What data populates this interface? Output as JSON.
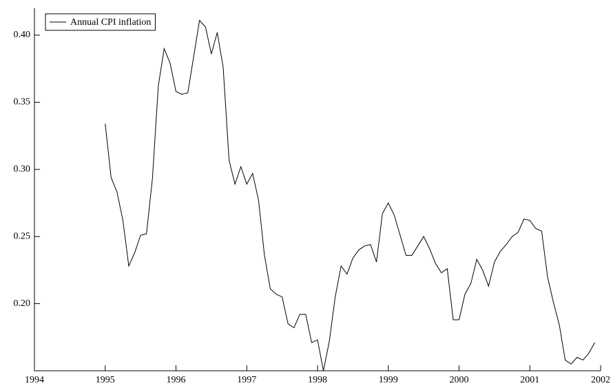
{
  "chart_data": {
    "type": "line",
    "xlim": [
      1994,
      2002
    ],
    "xticks": [
      1994,
      1995,
      1996,
      1997,
      1998,
      1999,
      2000,
      2001,
      2002
    ],
    "ylim": [
      0.15,
      0.42
    ],
    "yticks": [
      {
        "value": 0.2,
        "label": "0.20"
      },
      {
        "value": 0.25,
        "label": "0.25"
      },
      {
        "value": 0.3,
        "label": "0.30"
      },
      {
        "value": 0.35,
        "label": "0.35"
      },
      {
        "value": 0.4,
        "label": "0.40"
      }
    ],
    "legend": "upper left",
    "x": [
      1995.0,
      1995.083,
      1995.167,
      1995.25,
      1995.333,
      1995.417,
      1995.5,
      1995.583,
      1995.667,
      1995.75,
      1995.833,
      1995.917,
      1996.0,
      1996.083,
      1996.167,
      1996.25,
      1996.333,
      1996.417,
      1996.5,
      1996.583,
      1996.667,
      1996.75,
      1996.833,
      1996.917,
      1997.0,
      1997.083,
      1997.167,
      1997.25,
      1997.333,
      1997.417,
      1997.5,
      1997.583,
      1997.667,
      1997.75,
      1997.833,
      1997.917,
      1998.0,
      1998.083,
      1998.167,
      1998.25,
      1998.333,
      1998.417,
      1998.5,
      1998.583,
      1998.667,
      1998.75,
      1998.833,
      1998.917,
      1999.0,
      1999.083,
      1999.167,
      1999.25,
      1999.333,
      1999.417,
      1999.5,
      1999.583,
      1999.667,
      1999.75,
      1999.833,
      1999.917,
      2000.0,
      2000.083,
      2000.167,
      2000.25,
      2000.333,
      2000.417,
      2000.5,
      2000.583,
      2000.667,
      2000.75,
      2000.833,
      2000.917,
      2001.0,
      2001.083,
      2001.167,
      2001.25,
      2001.333,
      2001.417,
      2001.5,
      2001.583,
      2001.667,
      2001.75,
      2001.833,
      2001.917
    ],
    "series": [
      {
        "name": "Annual CPI inflation",
        "color": "#000000",
        "values": [
          0.334,
          0.294,
          0.283,
          0.262,
          0.228,
          0.238,
          0.251,
          0.252,
          0.293,
          0.362,
          0.39,
          0.379,
          0.358,
          0.356,
          0.357,
          0.384,
          0.411,
          0.406,
          0.386,
          0.402,
          0.376,
          0.307,
          0.289,
          0.302,
          0.289,
          0.297,
          0.277,
          0.236,
          0.211,
          0.207,
          0.205,
          0.185,
          0.182,
          0.192,
          0.192,
          0.171,
          0.173,
          0.15,
          0.172,
          0.205,
          0.228,
          0.222,
          0.234,
          0.24,
          0.243,
          0.244,
          0.231,
          0.267,
          0.275,
          0.266,
          0.251,
          0.236,
          0.236,
          0.243,
          0.25,
          0.241,
          0.23,
          0.223,
          0.226,
          0.188,
          0.188,
          0.207,
          0.215,
          0.233,
          0.225,
          0.213,
          0.231,
          0.239,
          0.244,
          0.25,
          0.253,
          0.263,
          0.262,
          0.256,
          0.254,
          0.22,
          0.201,
          0.184,
          0.158,
          0.155,
          0.16,
          0.158,
          0.163,
          0.171
        ]
      }
    ]
  }
}
